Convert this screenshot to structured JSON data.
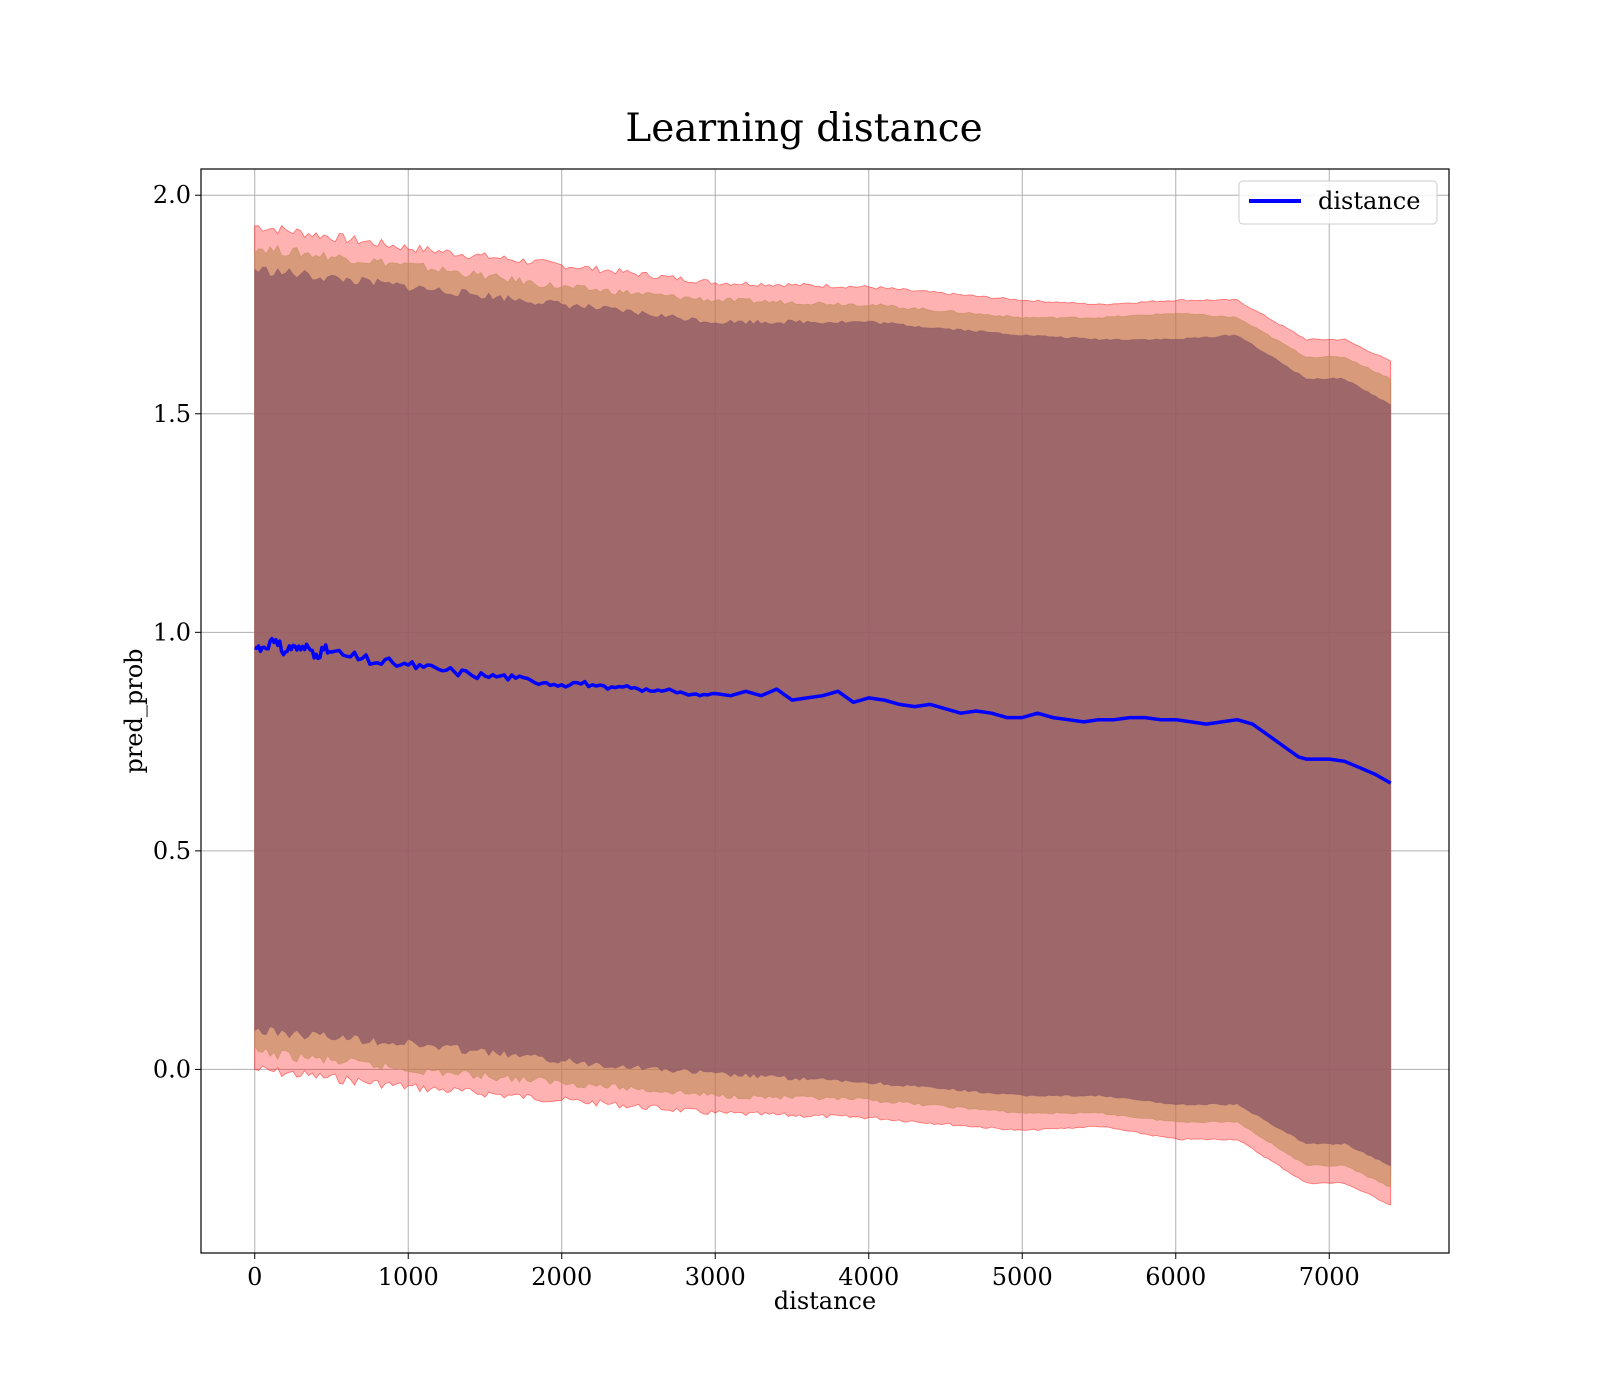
{
  "chart_data": {
    "type": "line",
    "title": "Learning distance",
    "xlabel": "distance",
    "ylabel": "pred_prob",
    "xlim": [
      -350,
      7780
    ],
    "ylim": [
      -0.42,
      2.06
    ],
    "xticks": [
      0,
      1000,
      2000,
      3000,
      4000,
      5000,
      6000,
      7000
    ],
    "yticks": [
      0.0,
      0.5,
      1.0,
      1.5,
      2.0
    ],
    "grid": true,
    "legend": {
      "position": "top-right",
      "entries": [
        "distance"
      ]
    },
    "series": [
      {
        "name": "distance",
        "color": "#0000ff",
        "x": [
          0,
          50,
          100,
          150,
          200,
          250,
          300,
          350,
          400,
          450,
          500,
          600,
          700,
          800,
          900,
          1000,
          1100,
          1200,
          1300,
          1400,
          1500,
          1600,
          1700,
          1800,
          1900,
          2000,
          2100,
          2200,
          2300,
          2400,
          2500,
          2600,
          2700,
          2800,
          2900,
          3000,
          3100,
          3200,
          3300,
          3400,
          3500,
          3600,
          3700,
          3800,
          3900,
          4000,
          4100,
          4200,
          4300,
          4400,
          4500,
          4600,
          4700,
          4800,
          4900,
          5000,
          5100,
          5200,
          5300,
          5400,
          5500,
          5600,
          5700,
          5800,
          5900,
          6000,
          6100,
          6200,
          6300,
          6400,
          6500,
          6600,
          6700,
          6800,
          6850,
          7000,
          7100,
          7200,
          7300,
          7400
        ],
        "y": [
          0.965,
          0.965,
          0.98,
          0.97,
          0.955,
          0.97,
          0.96,
          0.965,
          0.95,
          0.96,
          0.955,
          0.945,
          0.94,
          0.93,
          0.93,
          0.925,
          0.92,
          0.915,
          0.91,
          0.905,
          0.9,
          0.9,
          0.895,
          0.89,
          0.885,
          0.88,
          0.885,
          0.88,
          0.87,
          0.875,
          0.87,
          0.865,
          0.87,
          0.86,
          0.855,
          0.86,
          0.855,
          0.865,
          0.855,
          0.87,
          0.845,
          0.85,
          0.855,
          0.865,
          0.84,
          0.85,
          0.845,
          0.835,
          0.83,
          0.835,
          0.825,
          0.815,
          0.82,
          0.815,
          0.805,
          0.805,
          0.815,
          0.805,
          0.8,
          0.795,
          0.8,
          0.8,
          0.805,
          0.805,
          0.8,
          0.8,
          0.795,
          0.79,
          0.795,
          0.8,
          0.79,
          0.765,
          0.74,
          0.715,
          0.71,
          0.71,
          0.705,
          0.69,
          0.675,
          0.655
        ]
      }
    ],
    "bands": [
      {
        "name": "outer",
        "color": "#ff0000",
        "opacity": 0.3,
        "x": [
          0,
          1000,
          2000,
          3000,
          4000,
          5000,
          5500,
          6000,
          6400,
          6850,
          7100,
          7400
        ],
        "upper": [
          1.93,
          1.88,
          1.84,
          1.8,
          1.79,
          1.76,
          1.75,
          1.76,
          1.76,
          1.67,
          1.67,
          1.62
        ],
        "lower": [
          0.0,
          -0.04,
          -0.07,
          -0.1,
          -0.11,
          -0.14,
          -0.13,
          -0.16,
          -0.16,
          -0.26,
          -0.26,
          -0.31
        ]
      },
      {
        "name": "middle",
        "color": "#bd8a55",
        "opacity": 0.6,
        "x": [
          0,
          1000,
          2000,
          3000,
          4000,
          5000,
          5500,
          6000,
          6400,
          6850,
          7100,
          7400
        ],
        "upper": [
          1.88,
          1.84,
          1.79,
          1.76,
          1.75,
          1.72,
          1.72,
          1.73,
          1.72,
          1.63,
          1.63,
          1.58
        ],
        "lower": [
          0.04,
          0.0,
          -0.03,
          -0.06,
          -0.07,
          -0.1,
          -0.1,
          -0.12,
          -0.12,
          -0.22,
          -0.22,
          -0.27
        ]
      },
      {
        "name": "inner",
        "color": "#8b5666",
        "opacity": 0.75,
        "x": [
          0,
          1000,
          2000,
          3000,
          4000,
          5000,
          5500,
          6000,
          6400,
          6850,
          7100,
          7400
        ],
        "upper": [
          1.83,
          1.79,
          1.75,
          1.71,
          1.71,
          1.68,
          1.67,
          1.67,
          1.68,
          1.58,
          1.58,
          1.52
        ],
        "lower": [
          0.09,
          0.06,
          0.02,
          -0.01,
          -0.03,
          -0.06,
          -0.06,
          -0.08,
          -0.08,
          -0.17,
          -0.17,
          -0.22
        ]
      }
    ]
  }
}
